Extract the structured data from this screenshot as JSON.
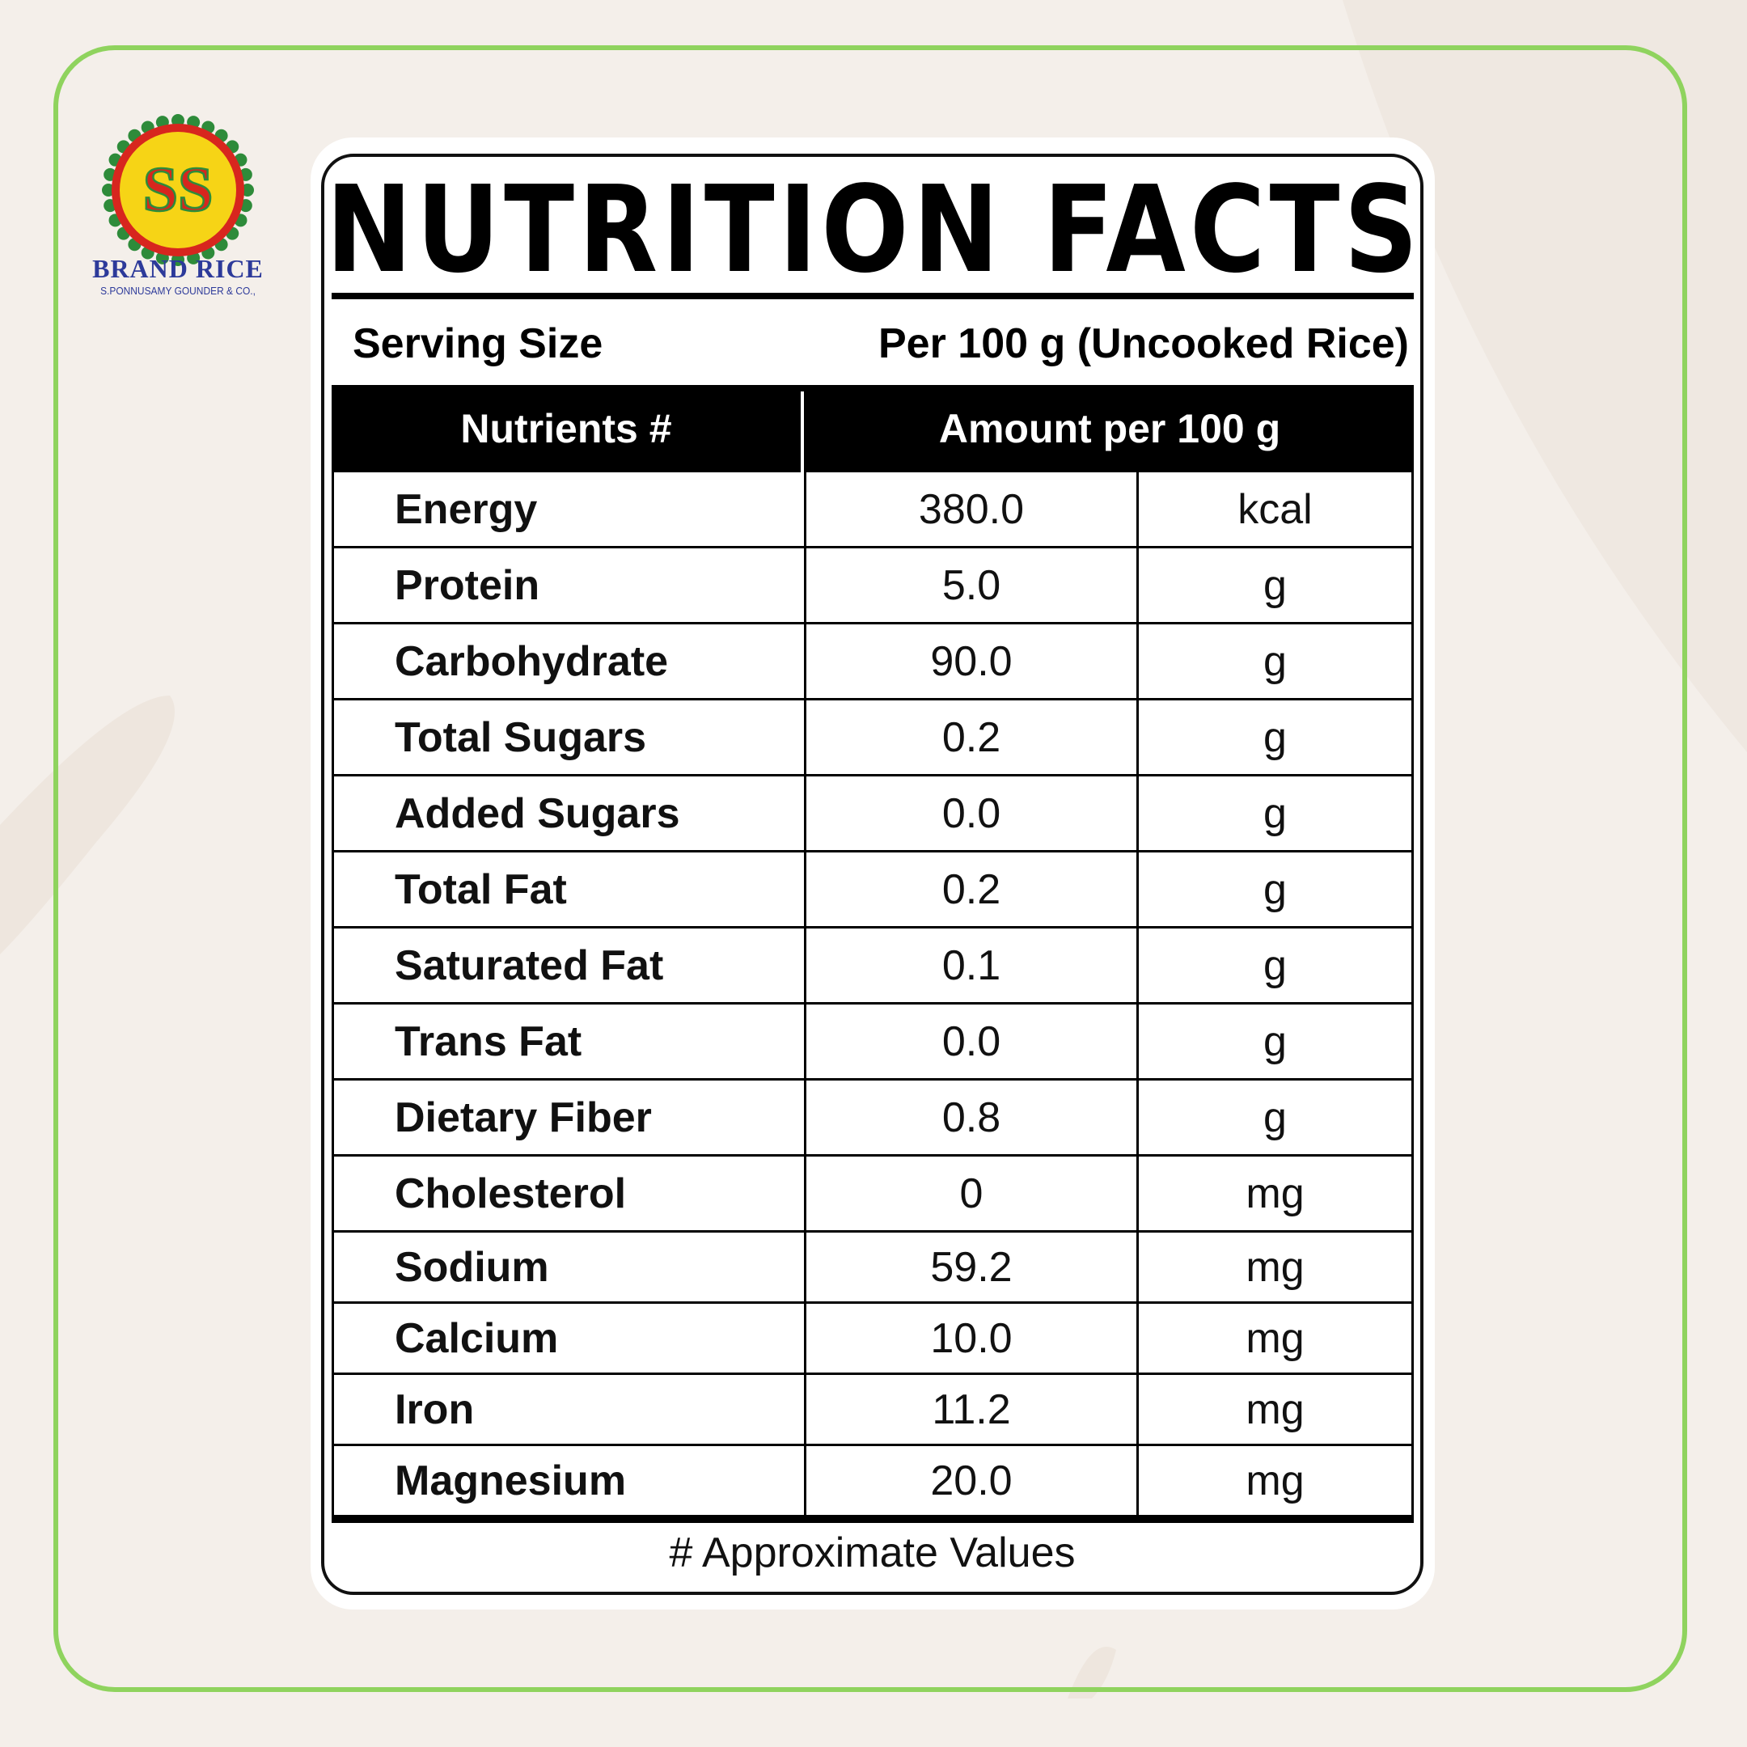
{
  "logo": {
    "initials": "SS",
    "brand": "BRAND RICE",
    "company": "S.PONNUSAMY GOUNDER & CO.,"
  },
  "title": "NUTRITION FACTS",
  "serving": {
    "label": "Serving Size",
    "value": "Per 100 g (Uncooked Rice)"
  },
  "table": {
    "headers": {
      "nutrient": "Nutrients #",
      "amount": "Amount per 100 g"
    },
    "rows": [
      {
        "name": "Energy",
        "amount": "380.0",
        "unit": "kcal"
      },
      {
        "name": "Protein",
        "amount": "5.0",
        "unit": "g"
      },
      {
        "name": "Carbohydrate",
        "amount": "90.0",
        "unit": "g"
      },
      {
        "name": "Total Sugars",
        "amount": "0.2",
        "unit": "g"
      },
      {
        "name": "Added Sugars",
        "amount": "0.0",
        "unit": "g"
      },
      {
        "name": "Total Fat",
        "amount": "0.2",
        "unit": "g"
      },
      {
        "name": "Saturated Fat",
        "amount": "0.1",
        "unit": "g"
      },
      {
        "name": "Trans Fat",
        "amount": "0.0",
        "unit": "g"
      },
      {
        "name": "Dietary Fiber",
        "amount": "0.8",
        "unit": "g"
      },
      {
        "name": "Cholesterol",
        "amount": "0",
        "unit": "mg"
      },
      {
        "name": "Sodium",
        "amount": "59.2",
        "unit": "mg"
      },
      {
        "name": "Calcium",
        "amount": "10.0",
        "unit": "mg"
      },
      {
        "name": "Iron",
        "amount": "11.2",
        "unit": "mg"
      },
      {
        "name": "Magnesium",
        "amount": "20.0",
        "unit": "mg"
      }
    ]
  },
  "footnote": "# Approximate Values",
  "colors": {
    "frame": "#8fd35e",
    "background": "#f4efea",
    "logo_ring": "#d7261e",
    "logo_badge": "#f6d416",
    "logo_dots": "#2e8b3a",
    "logo_text": "#2d3a9a"
  }
}
